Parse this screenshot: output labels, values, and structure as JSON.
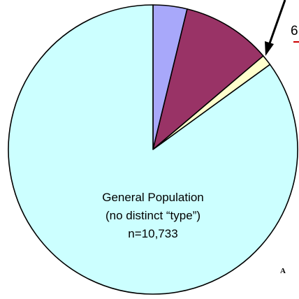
{
  "chart_data": {
    "type": "pie",
    "start_angle_deg": 0,
    "direction": "clockwise",
    "slices": [
      {
        "value": 3.8,
        "color": "#a8a8fa"
      },
      {
        "value": 10.0,
        "color": "#993366"
      },
      {
        "value": 1.2,
        "color": "#ffffcc"
      },
      {
        "value": 85.0,
        "color": "#ccffff"
      }
    ],
    "slice_stroke": "#000000",
    "annotation_arrow_color": "#000000",
    "underline_color": "#cc0000",
    "labels": {
      "general_population_line1": "General Population",
      "general_population_line2": "(no distinct “type”)",
      "general_population_line3": "n=10,733",
      "cut_off_number": "6",
      "cut_off_letter": "A"
    }
  }
}
